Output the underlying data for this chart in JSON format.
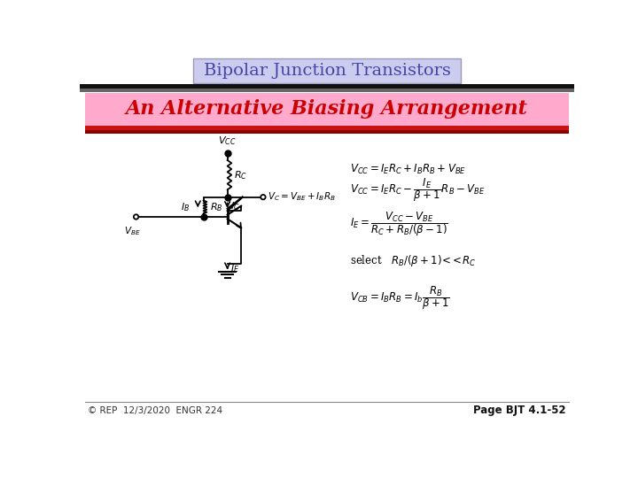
{
  "title": "Bipolar Junction Transistors",
  "subtitle": "An Alternative Biasing Arrangement",
  "footer_left": "© REP  12/3/2020  ENGR 224",
  "footer_right": "Page BJT 4.1-52",
  "bg_color": "#ffffff",
  "title_box_facecolor": "#ccccee",
  "title_box_edgecolor": "#9999bb",
  "title_text_color": "#4444aa",
  "subtitle_box_color": "#ffaacc",
  "subtitle_text_color": "#cc0000",
  "bar1_color": "#111111",
  "bar2_color": "#666666",
  "red_bar_color": "#cc1111",
  "dark_red_bar_color": "#880000"
}
